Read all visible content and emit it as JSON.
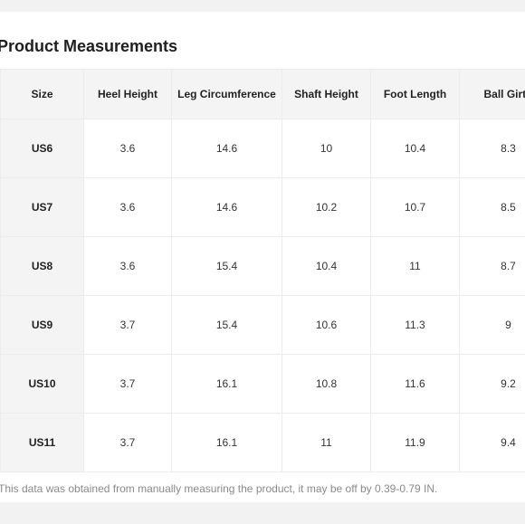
{
  "title": "Product Measurements",
  "table": {
    "headers": [
      "Size",
      "Heel Height",
      "Leg Circumference",
      "Shaft Height",
      "Foot Length",
      "Ball Girth"
    ],
    "rows": [
      [
        "US6",
        "3.6",
        "14.6",
        "10",
        "10.4",
        "8.3"
      ],
      [
        "US7",
        "3.6",
        "14.6",
        "10.2",
        "10.7",
        "8.5"
      ],
      [
        "US8",
        "3.6",
        "15.4",
        "10.4",
        "11",
        "8.7"
      ],
      [
        "US9",
        "3.7",
        "15.4",
        "10.6",
        "11.3",
        "9"
      ],
      [
        "US10",
        "3.7",
        "16.1",
        "10.8",
        "11.6",
        "9.2"
      ],
      [
        "US11",
        "3.7",
        "16.1",
        "11",
        "11.9",
        "9.4"
      ]
    ]
  },
  "note": "This data was obtained from manually measuring the product, it may be off by 0.39-0.79 IN."
}
